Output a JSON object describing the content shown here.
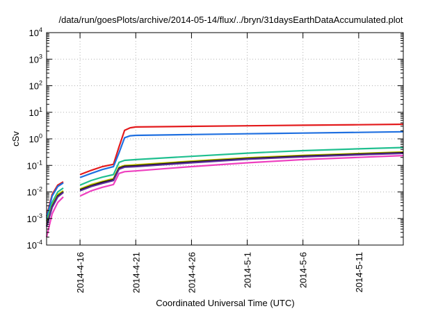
{
  "chart_data": {
    "type": "line",
    "title": "/data/run/goesPlots/archive/2014-05-14/flux/../bryn/31daysEarthDataAccumulated.plot",
    "xlabel": "Coordinated Universal Time (UTC)",
    "ylabel": "cSv",
    "yscale": "log",
    "ylim": [
      0.0001,
      10000
    ],
    "xlim": [
      "2014-04-13",
      "2014-05-15"
    ],
    "x_ticks": [
      "2014-4-16",
      "2014-4-21",
      "2014-4-26",
      "2014-5-1",
      "2014-5-6",
      "2014-5-11"
    ],
    "y_ticks": [
      {
        "value": 0.0001,
        "label": "10",
        "exp": "-4"
      },
      {
        "value": 0.001,
        "label": "10",
        "exp": "-3"
      },
      {
        "value": 0.01,
        "label": "10",
        "exp": "-2"
      },
      {
        "value": 0.1,
        "label": "10",
        "exp": "-1"
      },
      {
        "value": 1,
        "label": "10",
        "exp": "0"
      },
      {
        "value": 10,
        "label": "10",
        "exp": "1"
      },
      {
        "value": 100,
        "label": "10",
        "exp": "2"
      },
      {
        "value": 1000,
        "label": "10",
        "exp": "3"
      },
      {
        "value": 10000,
        "label": "10",
        "exp": "4"
      }
    ],
    "grid": true,
    "legend": "none",
    "series": [
      {
        "color": "#e31a1c",
        "segments": [
          [
            [
              "2014-04-13T00:00",
              0.0012
            ],
            [
              "2014-04-13T12:00",
              0.008
            ],
            [
              "2014-04-14T00:00",
              0.018
            ],
            [
              "2014-04-14T12:00",
              0.024
            ]
          ],
          [
            [
              "2014-04-16T00:00",
              0.045
            ],
            [
              "2014-04-17T00:00",
              0.065
            ],
            [
              "2014-04-18T00:00",
              0.09
            ],
            [
              "2014-04-19T00:00",
              0.11
            ],
            [
              "2014-04-19T12:00",
              0.5
            ],
            [
              "2014-04-20T00:00",
              2.1
            ],
            [
              "2014-04-20T12:00",
              2.6
            ],
            [
              "2014-04-21T00:00",
              2.8
            ],
            [
              "2014-04-26T00:00",
              2.95
            ],
            [
              "2014-05-01T00:00",
              3.1
            ],
            [
              "2014-05-06T00:00",
              3.25
            ],
            [
              "2014-05-11T00:00",
              3.4
            ],
            [
              "2014-05-15T00:00",
              3.55
            ]
          ]
        ]
      },
      {
        "color": "#1e6fe0",
        "segments": [
          [
            [
              "2014-04-13T00:00",
              0.001
            ],
            [
              "2014-04-13T12:00",
              0.007
            ],
            [
              "2014-04-14T00:00",
              0.016
            ],
            [
              "2014-04-14T12:00",
              0.022
            ]
          ],
          [
            [
              "2014-04-16T00:00",
              0.035
            ],
            [
              "2014-04-17T00:00",
              0.05
            ],
            [
              "2014-04-18T00:00",
              0.07
            ],
            [
              "2014-04-19T00:00",
              0.09
            ],
            [
              "2014-04-19T12:00",
              0.3
            ],
            [
              "2014-04-20T00:00",
              1.1
            ],
            [
              "2014-04-20T12:00",
              1.3
            ],
            [
              "2014-04-21T00:00",
              1.35
            ],
            [
              "2014-04-26T00:00",
              1.45
            ],
            [
              "2014-05-01T00:00",
              1.55
            ],
            [
              "2014-05-06T00:00",
              1.65
            ],
            [
              "2014-05-11T00:00",
              1.75
            ],
            [
              "2014-05-15T00:00",
              1.85
            ]
          ]
        ]
      },
      {
        "color": "#1fbf8f",
        "segments": [
          [
            [
              "2014-04-13T00:00",
              0.0008
            ],
            [
              "2014-04-13T12:00",
              0.004
            ],
            [
              "2014-04-14T00:00",
              0.01
            ],
            [
              "2014-04-14T12:00",
              0.014
            ]
          ],
          [
            [
              "2014-04-16T00:00",
              0.018
            ],
            [
              "2014-04-17T00:00",
              0.027
            ],
            [
              "2014-04-18T00:00",
              0.036
            ],
            [
              "2014-04-19T00:00",
              0.045
            ],
            [
              "2014-04-19T12:00",
              0.13
            ],
            [
              "2014-04-20T00:00",
              0.155
            ],
            [
              "2014-04-21T00:00",
              0.165
            ],
            [
              "2014-04-26T00:00",
              0.22
            ],
            [
              "2014-05-01T00:00",
              0.29
            ],
            [
              "2014-05-06T00:00",
              0.36
            ],
            [
              "2014-05-11T00:00",
              0.42
            ],
            [
              "2014-05-15T00:00",
              0.47
            ]
          ]
        ]
      },
      {
        "color": "#bfbf00",
        "segments": [
          [
            [
              "2014-04-13T00:00",
              0.0006
            ],
            [
              "2014-04-13T12:00",
              0.003
            ],
            [
              "2014-04-14T00:00",
              0.008
            ],
            [
              "2014-04-14T12:00",
              0.011
            ]
          ],
          [
            [
              "2014-04-16T00:00",
              0.013
            ],
            [
              "2014-04-17T00:00",
              0.019
            ],
            [
              "2014-04-18T00:00",
              0.025
            ],
            [
              "2014-04-19T00:00",
              0.032
            ],
            [
              "2014-04-19T12:00",
              0.085
            ],
            [
              "2014-04-20T00:00",
              0.1
            ],
            [
              "2014-04-21T00:00",
              0.105
            ],
            [
              "2014-04-26T00:00",
              0.145
            ],
            [
              "2014-05-01T00:00",
              0.195
            ],
            [
              "2014-05-06T00:00",
              0.24
            ],
            [
              "2014-05-11T00:00",
              0.28
            ],
            [
              "2014-05-15T00:00",
              0.32
            ]
          ]
        ]
      },
      {
        "color": "#111111",
        "segments": [
          [
            [
              "2014-04-13T00:00",
              0.0005
            ],
            [
              "2014-04-13T12:00",
              0.0028
            ],
            [
              "2014-04-14T00:00",
              0.007
            ],
            [
              "2014-04-14T12:00",
              0.01
            ]
          ],
          [
            [
              "2014-04-16T00:00",
              0.012
            ],
            [
              "2014-04-17T00:00",
              0.017
            ],
            [
              "2014-04-18T00:00",
              0.023
            ],
            [
              "2014-04-19T00:00",
              0.029
            ],
            [
              "2014-04-19T12:00",
              0.078
            ],
            [
              "2014-04-20T00:00",
              0.092
            ],
            [
              "2014-04-21T00:00",
              0.097
            ],
            [
              "2014-04-26T00:00",
              0.135
            ],
            [
              "2014-05-01T00:00",
              0.18
            ],
            [
              "2014-05-06T00:00",
              0.225
            ],
            [
              "2014-05-11T00:00",
              0.265
            ],
            [
              "2014-05-15T00:00",
              0.3
            ]
          ]
        ]
      },
      {
        "color": "#5a2d9a",
        "segments": [
          [
            [
              "2014-04-13T00:00",
              0.0005
            ],
            [
              "2014-04-13T12:00",
              0.0026
            ],
            [
              "2014-04-14T00:00",
              0.0065
            ],
            [
              "2014-04-14T12:00",
              0.0095
            ]
          ],
          [
            [
              "2014-04-16T00:00",
              0.011
            ],
            [
              "2014-04-17T00:00",
              0.016
            ],
            [
              "2014-04-18T00:00",
              0.021
            ],
            [
              "2014-04-19T00:00",
              0.027
            ],
            [
              "2014-04-19T12:00",
              0.072
            ],
            [
              "2014-04-20T00:00",
              0.086
            ],
            [
              "2014-04-21T00:00",
              0.09
            ],
            [
              "2014-04-26T00:00",
              0.125
            ],
            [
              "2014-05-01T00:00",
              0.17
            ],
            [
              "2014-05-06T00:00",
              0.21
            ],
            [
              "2014-05-11T00:00",
              0.25
            ],
            [
              "2014-05-15T00:00",
              0.285
            ]
          ]
        ]
      },
      {
        "color": "#ee3fbf",
        "segments": [
          [
            [
              "2014-04-13T00:00",
              0.0002
            ],
            [
              "2014-04-13T12:00",
              0.0015
            ],
            [
              "2014-04-14T00:00",
              0.004
            ],
            [
              "2014-04-14T12:00",
              0.0065
            ]
          ],
          [
            [
              "2014-04-16T00:00",
              0.007
            ],
            [
              "2014-04-17T00:00",
              0.011
            ],
            [
              "2014-04-18T00:00",
              0.015
            ],
            [
              "2014-04-19T00:00",
              0.019
            ],
            [
              "2014-04-19T12:00",
              0.05
            ],
            [
              "2014-04-20T00:00",
              0.058
            ],
            [
              "2014-04-21T00:00",
              0.062
            ],
            [
              "2014-04-26T00:00",
              0.09
            ],
            [
              "2014-05-01T00:00",
              0.125
            ],
            [
              "2014-05-06T00:00",
              0.165
            ],
            [
              "2014-05-11T00:00",
              0.2
            ],
            [
              "2014-05-15T00:00",
              0.235
            ]
          ]
        ]
      }
    ]
  }
}
